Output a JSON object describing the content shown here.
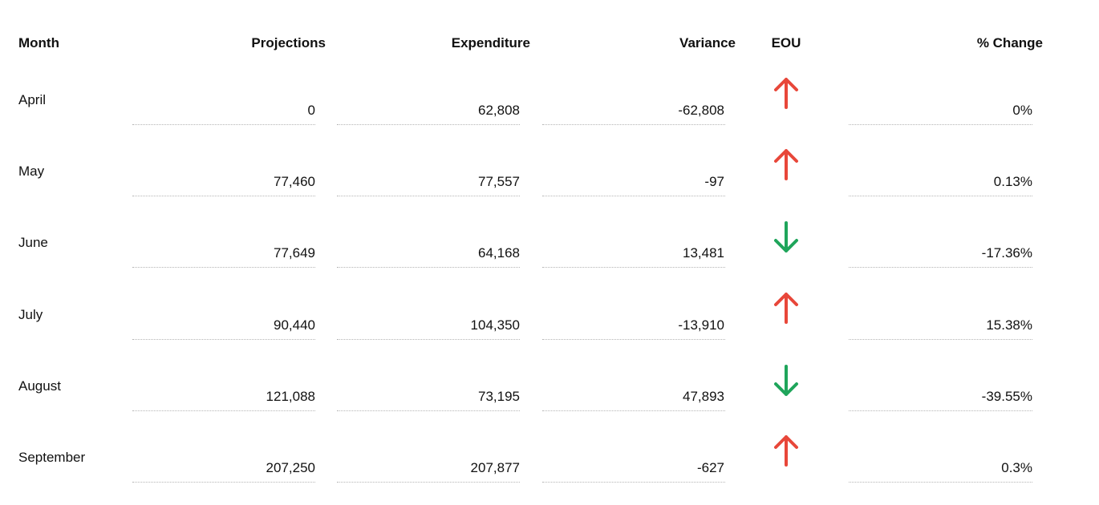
{
  "table": {
    "headers": {
      "month": "Month",
      "projections": "Projections",
      "expenditure": "Expenditure",
      "variance": "Variance",
      "eou": "EOU",
      "pct_change": "% Change"
    },
    "rows": [
      {
        "month": "April",
        "projections": "0",
        "expenditure": "62,808",
        "variance": "-62,808",
        "eou": "arrow-up-icon",
        "eou_color": "#e8473a",
        "pct_change": "0%"
      },
      {
        "month": "May",
        "projections": "77,460",
        "expenditure": "77,557",
        "variance": "-97",
        "eou": "arrow-up-icon",
        "eou_color": "#e8473a",
        "pct_change": "0.13%"
      },
      {
        "month": "June",
        "projections": "77,649",
        "expenditure": "64,168",
        "variance": "13,481",
        "eou": "arrow-down-icon",
        "eou_color": "#1fa55b",
        "pct_change": "-17.36%"
      },
      {
        "month": "July",
        "projections": "90,440",
        "expenditure": "104,350",
        "variance": "-13,910",
        "eou": "arrow-up-icon",
        "eou_color": "#e8473a",
        "pct_change": "15.38%"
      },
      {
        "month": "August",
        "projections": "121,088",
        "expenditure": "73,195",
        "variance": "47,893",
        "eou": "arrow-down-icon",
        "eou_color": "#1fa55b",
        "pct_change": "-39.55%"
      },
      {
        "month": "September",
        "projections": "207,250",
        "expenditure": "207,877",
        "variance": "-627",
        "eou": "arrow-up-icon",
        "eou_color": "#e8473a",
        "pct_change": "0.3%"
      }
    ]
  }
}
